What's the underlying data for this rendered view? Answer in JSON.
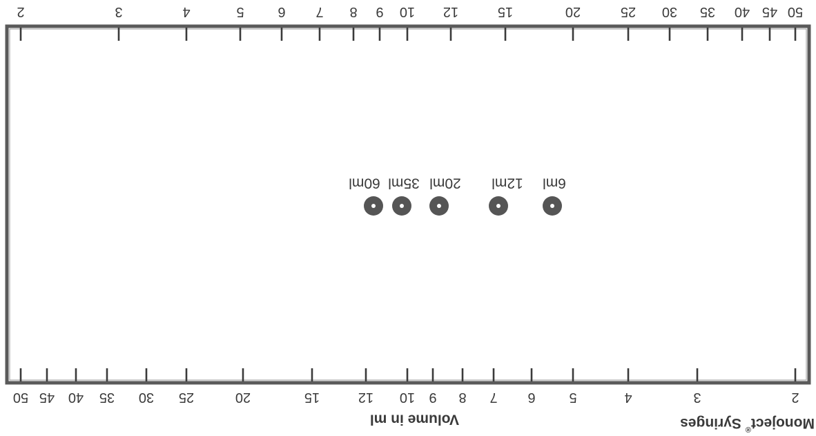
{
  "diagram": {
    "brand": "Monoject",
    "brand_mark": "®",
    "brand_suffix": " Syringes",
    "axis_title": "Volume in ml",
    "bottom_scale_labels": [
      "2",
      "3",
      "4",
      "5",
      "6",
      "7",
      "8",
      "9",
      "10",
      "12",
      "15",
      "20",
      "25",
      "30",
      "35",
      "40",
      "45",
      "50"
    ],
    "top_scale_labels": [
      "2",
      "3",
      "4",
      "5",
      "6",
      "7",
      "8",
      "9",
      "10",
      "12",
      "15",
      "20",
      "25",
      "30",
      "35",
      "40",
      "45",
      "50"
    ],
    "syringes": [
      {
        "label": "6ml"
      },
      {
        "label": "12ml"
      },
      {
        "label": "20ml"
      },
      {
        "label": "35ml"
      },
      {
        "label": "60ml"
      }
    ],
    "colors": {
      "ink": "#3a3a3a",
      "hole": "#555555",
      "frame": "#5a5a5a"
    }
  }
}
